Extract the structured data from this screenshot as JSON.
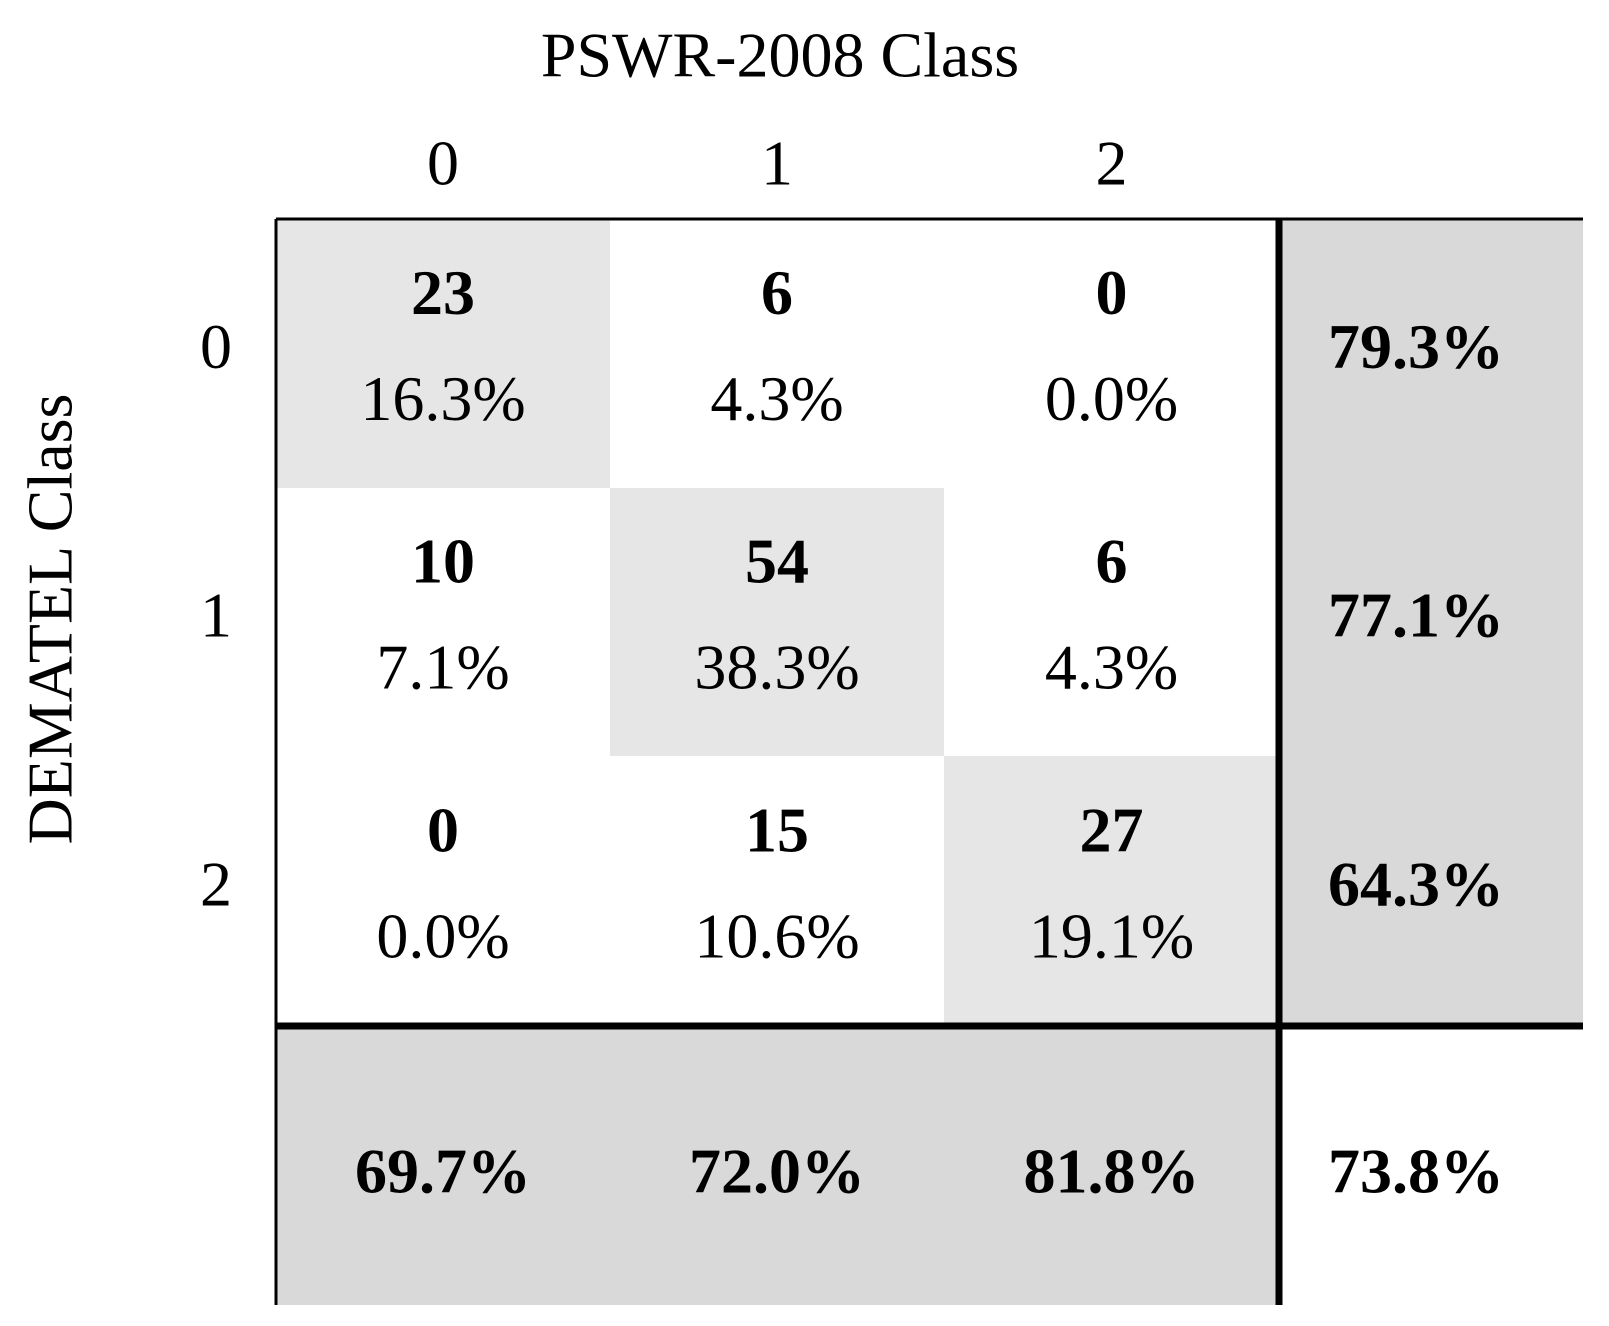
{
  "title": "PSWR-2008 Class",
  "y_label": "DEMATEL Class",
  "col_labels": [
    "0",
    "1",
    "2"
  ],
  "row_labels": [
    "0",
    "1",
    "2"
  ],
  "cells": [
    [
      {
        "count": 23,
        "percent": "16.3%"
      },
      {
        "count": 6,
        "percent": "4.3%"
      },
      {
        "count": 0,
        "percent": "0.0%"
      }
    ],
    [
      {
        "count": 10,
        "percent": "7.1%"
      },
      {
        "count": 54,
        "percent": "38.3%"
      },
      {
        "count": 6,
        "percent": "4.3%"
      }
    ],
    [
      {
        "count": 0,
        "percent": "0.0%"
      },
      {
        "count": 15,
        "percent": "10.6%"
      },
      {
        "count": 27,
        "percent": "19.1%"
      }
    ]
  ],
  "row_totals": [
    "79.3%",
    "77.1%",
    "64.3%"
  ],
  "col_totals": [
    "69.7%",
    "72.0%",
    "81.8%"
  ],
  "overall": "73.8%"
}
